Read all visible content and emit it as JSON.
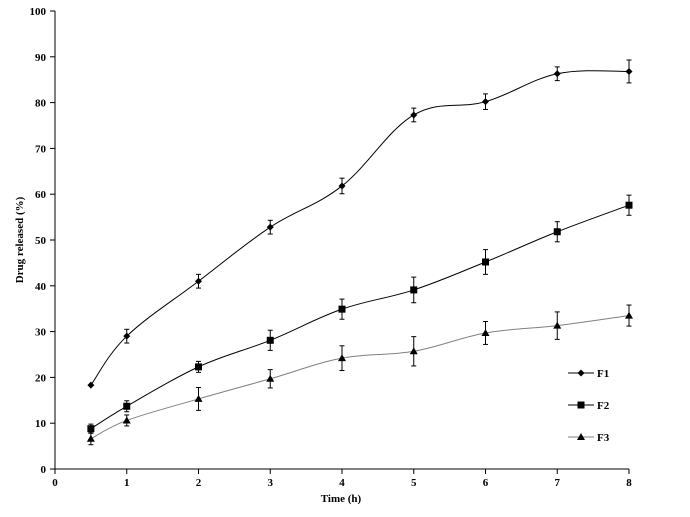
{
  "chart_data": {
    "type": "line",
    "title": "",
    "xlabel": "Time (h)",
    "ylabel": "Drug released (%)",
    "xlim": [
      0,
      8
    ],
    "ylim": [
      0,
      100
    ],
    "xticks": [
      "0",
      "1",
      "2",
      "3",
      "4",
      "5",
      "6",
      "7",
      "8"
    ],
    "yticks": [
      "0",
      "10",
      "20",
      "30",
      "40",
      "50",
      "60",
      "70",
      "80",
      "90",
      "100"
    ],
    "grid": false,
    "legend_position": "bottom-right",
    "x": [
      0.5,
      1,
      2,
      3,
      4,
      5,
      6,
      7,
      8
    ],
    "series": [
      {
        "name": "F1",
        "marker": "diamond",
        "color": "#000000",
        "values": [
          18.3,
          29.0,
          41.0,
          52.8,
          61.8,
          77.3,
          80.2,
          86.3,
          86.8
        ],
        "errors": [
          0,
          1.5,
          1.5,
          1.5,
          1.7,
          1.5,
          1.7,
          1.5,
          2.5
        ]
      },
      {
        "name": "F2",
        "marker": "square",
        "color": "#000000",
        "values": [
          8.8,
          13.7,
          22.3,
          28.1,
          34.9,
          39.1,
          45.2,
          51.8,
          57.6
        ],
        "errors": [
          1.0,
          1.2,
          1.2,
          2.2,
          2.2,
          2.8,
          2.7,
          2.2,
          2.2
        ]
      },
      {
        "name": "F3",
        "marker": "triangle",
        "color": "#808080",
        "values": [
          6.6,
          10.6,
          15.3,
          19.7,
          24.2,
          25.7,
          29.7,
          31.3,
          33.5
        ],
        "errors": [
          1.3,
          1.2,
          2.5,
          2.0,
          2.7,
          3.2,
          2.5,
          3.0,
          2.3
        ]
      }
    ]
  }
}
